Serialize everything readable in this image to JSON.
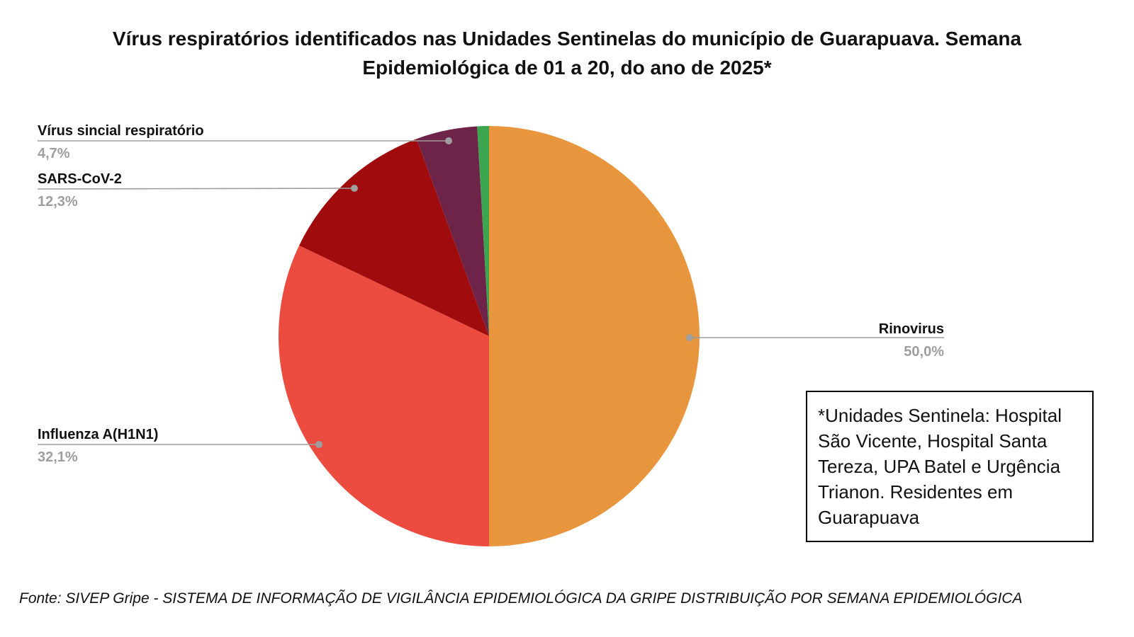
{
  "title": {
    "line1": "Vírus respiratórios identificados nas Unidades Sentinelas do município de Guarapuava. Semana",
    "line2": "Epidemiológica de 01 a 20, do ano de 2025*"
  },
  "annotation_box": {
    "text": "*Unidades Sentinela: Hospital São Vicente, Hospital Santa Tereza, UPA Batel e Urgência Trianon. Residentes em Guarapuava"
  },
  "footer": "Fonte: SIVEP Gripe - SISTEMA DE INFORMAÇÃO DE VIGILÂNCIA EPIDEMIOLÓGICA DA GRIPE DISTRIBUIÇÃO POR SEMANA EPIDEMIOLÓGICA",
  "chart_data": {
    "type": "pie",
    "title": "Vírus respiratórios identificados nas Unidades Sentinelas do município de Guarapuava. Semana Epidemiológica de 01 a 20, do ano de 2025*",
    "start_angle_deg": 0,
    "direction": "clockwise",
    "legend": "none",
    "label_style": {
      "name_color": "#111111",
      "pct_color": "#9e9e9e",
      "leader_color": "#9e9e9e"
    },
    "slices": [
      {
        "label": "Rinovirus",
        "value": 50.0,
        "pct_label": "50,0%",
        "color": "#E8963D"
      },
      {
        "label": "Influenza A(H1N1)",
        "value": 32.1,
        "pct_label": "32,1%",
        "color": "#EC4C3F"
      },
      {
        "label": "SARS-CoV-2",
        "value": 12.3,
        "pct_label": "12,3%",
        "color": "#A00C0D"
      },
      {
        "label": "Vírus sincial respiratório",
        "value": 4.7,
        "pct_label": "4,7%",
        "color": "#6E2348"
      },
      {
        "label": "",
        "value": 0.9,
        "pct_label": "",
        "color": "#3CA550"
      }
    ]
  }
}
